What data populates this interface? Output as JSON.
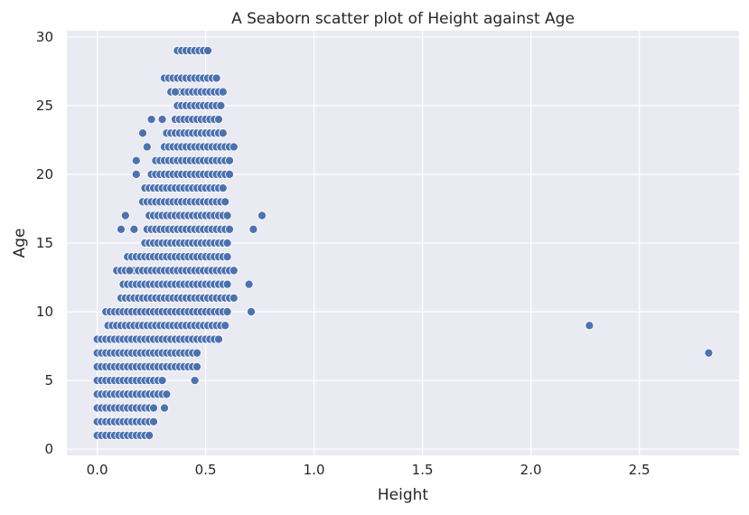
{
  "chart_data": {
    "type": "scatter",
    "title": "A Seaborn scatter plot of Height against Age",
    "xlabel": "Height",
    "ylabel": "Age",
    "xlim": [
      -0.14,
      2.96
    ],
    "ylim": [
      -0.45,
      30.45
    ],
    "xticks": [
      0.0,
      0.5,
      1.0,
      1.5,
      2.0,
      2.5
    ],
    "xtick_labels": [
      "0.0",
      "0.5",
      "1.0",
      "1.5",
      "2.0",
      "2.5"
    ],
    "yticks": [
      0,
      5,
      10,
      15,
      20,
      25,
      30
    ],
    "ytick_labels": [
      "0",
      "5",
      "10",
      "15",
      "20",
      "25",
      "30"
    ],
    "grid": true,
    "background": "#eaeaf2",
    "marker_color": "#4c72b0",
    "point_ranges": [
      {
        "age": 1,
        "height_min": 0.0,
        "height_max": 0.22,
        "step": 0.02
      },
      {
        "age": 2,
        "height_min": 0.0,
        "height_max": 0.25,
        "step": 0.02
      },
      {
        "age": 3,
        "height_min": 0.0,
        "height_max": 0.26,
        "step": 0.02
      },
      {
        "age": 4,
        "height_min": 0.0,
        "height_max": 0.32,
        "step": 0.02
      },
      {
        "age": 5,
        "height_min": 0.0,
        "height_max": 0.3,
        "step": 0.02
      },
      {
        "age": 6,
        "height_min": 0.0,
        "height_max": 0.45,
        "step": 0.02
      },
      {
        "age": 7,
        "height_min": 0.0,
        "height_max": 0.47,
        "step": 0.02
      },
      {
        "age": 8,
        "height_min": 0.0,
        "height_max": 0.56,
        "step": 0.02
      },
      {
        "age": 9,
        "height_min": 0.05,
        "height_max": 0.6,
        "step": 0.02
      },
      {
        "age": 10,
        "height_min": 0.04,
        "height_max": 0.6,
        "step": 0.02
      },
      {
        "age": 11,
        "height_min": 0.11,
        "height_max": 0.62,
        "step": 0.02
      },
      {
        "age": 12,
        "height_min": 0.12,
        "height_max": 0.6,
        "step": 0.02
      },
      {
        "age": 13,
        "height_min": 0.09,
        "height_max": 0.62,
        "step": 0.02
      },
      {
        "age": 14,
        "height_min": 0.14,
        "height_max": 0.6,
        "step": 0.02
      },
      {
        "age": 15,
        "height_min": 0.22,
        "height_max": 0.59,
        "step": 0.02
      },
      {
        "age": 16,
        "height_min": 0.23,
        "height_max": 0.61,
        "step": 0.02
      },
      {
        "age": 17,
        "height_min": 0.24,
        "height_max": 0.6,
        "step": 0.02
      },
      {
        "age": 18,
        "height_min": 0.21,
        "height_max": 0.59,
        "step": 0.02
      },
      {
        "age": 19,
        "height_min": 0.22,
        "height_max": 0.58,
        "step": 0.02
      },
      {
        "age": 20,
        "height_min": 0.25,
        "height_max": 0.61,
        "step": 0.02
      },
      {
        "age": 21,
        "height_min": 0.27,
        "height_max": 0.61,
        "step": 0.02
      },
      {
        "age": 22,
        "height_min": 0.31,
        "height_max": 0.63,
        "step": 0.02
      },
      {
        "age": 23,
        "height_min": 0.32,
        "height_max": 0.58,
        "step": 0.02
      },
      {
        "age": 24,
        "height_min": 0.36,
        "height_max": 0.55,
        "step": 0.02
      },
      {
        "age": 25,
        "height_min": 0.37,
        "height_max": 0.56,
        "step": 0.02
      },
      {
        "age": 26,
        "height_min": 0.34,
        "height_max": 0.59,
        "step": 0.02
      },
      {
        "age": 27,
        "height_min": 0.31,
        "height_max": 0.54,
        "step": 0.02
      },
      {
        "age": 29,
        "height_min": 0.37,
        "height_max": 0.51,
        "step": 0.02
      }
    ],
    "points": [
      {
        "height": 0.15,
        "age": 13
      },
      {
        "height": 0.13,
        "age": 17
      },
      {
        "height": 0.11,
        "age": 16
      },
      {
        "height": 0.17,
        "age": 16
      },
      {
        "height": 0.18,
        "age": 21
      },
      {
        "height": 0.18,
        "age": 20
      },
      {
        "height": 0.21,
        "age": 23
      },
      {
        "height": 0.25,
        "age": 24
      },
      {
        "height": 0.23,
        "age": 22
      },
      {
        "height": 0.3,
        "age": 24
      },
      {
        "height": 0.36,
        "age": 26
      },
      {
        "height": 0.24,
        "age": 1
      },
      {
        "height": 0.31,
        "age": 3
      },
      {
        "height": 0.45,
        "age": 5
      },
      {
        "height": 0.7,
        "age": 12
      },
      {
        "height": 0.71,
        "age": 10
      },
      {
        "height": 0.72,
        "age": 16
      },
      {
        "height": 0.76,
        "age": 17
      },
      {
        "height": 2.27,
        "age": 9
      },
      {
        "height": 2.82,
        "age": 7
      }
    ]
  }
}
